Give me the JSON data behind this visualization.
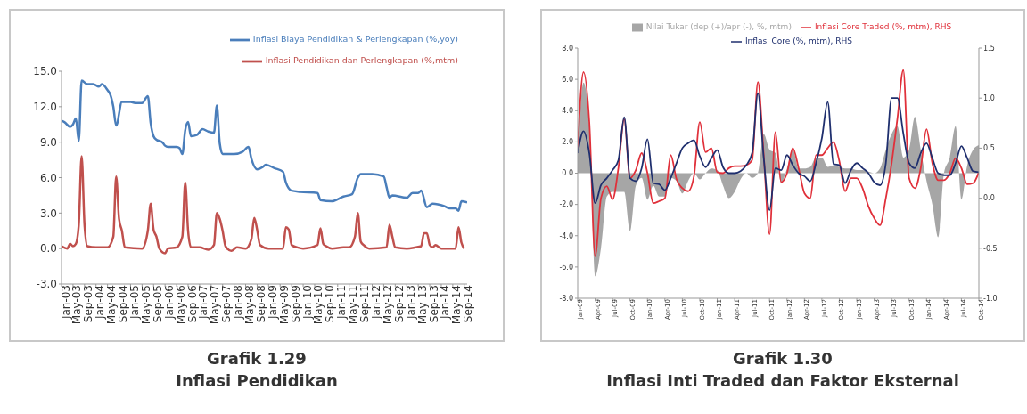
{
  "chart_data": [
    {
      "type": "line",
      "title": "Grafik 1.29",
      "subtitle": "Inflasi Pendidikan",
      "marker": "none",
      "legend": "top right",
      "xlim": [
        "2003-01",
        "2014-10"
      ],
      "ylim": [
        -3,
        15
      ],
      "yticks": [
        {
          "value": -3,
          "label": "-3.0"
        },
        {
          "value": 0,
          "label": "0.0"
        },
        {
          "value": 3,
          "label": "3.0"
        },
        {
          "value": 6,
          "label": "6.0"
        },
        {
          "value": 9,
          "label": "9.0"
        },
        {
          "value": 12,
          "label": "12.0"
        },
        {
          "value": 15,
          "label": "15.0"
        }
      ],
      "xticks": [
        {
          "value": "2003-01",
          "label": "Jan-03"
        },
        {
          "value": "2003-05",
          "label": "May-03"
        },
        {
          "value": "2003-09",
          "label": "Sep-03"
        },
        {
          "value": "2004-01",
          "label": "Jan-04"
        },
        {
          "value": "2004-05",
          "label": "May-04"
        },
        {
          "value": "2004-09",
          "label": "Sep-04"
        },
        {
          "value": "2005-01",
          "label": "Jan-05"
        },
        {
          "value": "2005-05",
          "label": "May-05"
        },
        {
          "value": "2005-09",
          "label": "Sep-05"
        },
        {
          "value": "2006-01",
          "label": "Jan-06"
        },
        {
          "value": "2006-05",
          "label": "May-06"
        },
        {
          "value": "2006-09",
          "label": "Sep-06"
        },
        {
          "value": "2007-01",
          "label": "Jan-07"
        },
        {
          "value": "2007-05",
          "label": "May-07"
        },
        {
          "value": "2007-09",
          "label": "Sep-07"
        },
        {
          "value": "2008-01",
          "label": "Jan-08"
        },
        {
          "value": "2008-05",
          "label": "May-08"
        },
        {
          "value": "2008-09",
          "label": "Sep-08"
        },
        {
          "value": "2009-01",
          "label": "Jan-09"
        },
        {
          "value": "2009-05",
          "label": "May-09"
        },
        {
          "value": "2009-09",
          "label": "Sep-09"
        },
        {
          "value": "2010-01",
          "label": "Jan-10"
        },
        {
          "value": "2010-05",
          "label": "May-10"
        },
        {
          "value": "2010-09",
          "label": "Sep-10"
        },
        {
          "value": "2011-01",
          "label": "Jan-11"
        },
        {
          "value": "2011-05",
          "label": "May-11"
        },
        {
          "value": "2011-09",
          "label": "Sep-11"
        },
        {
          "value": "2012-01",
          "label": "Jan-12"
        },
        {
          "value": "2012-05",
          "label": "May-12"
        },
        {
          "value": "2012-09",
          "label": "Sep-12"
        },
        {
          "value": "2013-01",
          "label": "Jan-13"
        },
        {
          "value": "2013-05",
          "label": "May-13"
        },
        {
          "value": "2013-09",
          "label": "Sep-13"
        },
        {
          "value": "2014-01",
          "label": "Jan-14"
        },
        {
          "value": "2014-05",
          "label": "May-14"
        },
        {
          "value": "2014-09",
          "label": "Sep-14"
        }
      ],
      "series": [
        {
          "name": "Inflasi Biaya Pendidikan & Perlengkapan (%,yoy)",
          "color": "#4a7ebb",
          "x": [
            "2003-01",
            "2003-02",
            "2003-04",
            "2003-05",
            "2003-06",
            "2003-07",
            "2003-08",
            "2003-10",
            "2003-12",
            "2004-02",
            "2004-03",
            "2004-05",
            "2004-06",
            "2004-07",
            "2004-08",
            "2004-10",
            "2005-01",
            "2005-03",
            "2005-05",
            "2005-07",
            "2005-08",
            "2005-09",
            "2005-10",
            "2005-12",
            "2006-01",
            "2006-02",
            "2006-05",
            "2006-06",
            "2006-07",
            "2006-08",
            "2006-09",
            "2006-10",
            "2006-12",
            "2007-02",
            "2007-04",
            "2007-06",
            "2007-07",
            "2007-08",
            "2007-09",
            "2008-01",
            "2008-04",
            "2008-06",
            "2008-07",
            "2008-09",
            "2008-11",
            "2008-12",
            "2009-03",
            "2009-06",
            "2009-07",
            "2009-09",
            "2009-12",
            "2010-06",
            "2010-07",
            "2010-11",
            "2011-03",
            "2011-06",
            "2011-08",
            "2011-09",
            "2012-01",
            "2012-05",
            "2012-06",
            "2012-07",
            "2012-08",
            "2013-01",
            "2013-03",
            "2013-05",
            "2013-06",
            "2013-08",
            "2013-10",
            "2014-02",
            "2014-04",
            "2014-06",
            "2014-07",
            "2014-08",
            "2014-10"
          ],
          "values": [
            10.8,
            10.7,
            10.3,
            10.5,
            11.0,
            9.1,
            14.2,
            13.9,
            13.9,
            13.7,
            13.9,
            13.4,
            13.0,
            12.0,
            10.4,
            12.4,
            12.4,
            12.3,
            12.3,
            12.9,
            10.6,
            9.5,
            9.2,
            9.0,
            8.7,
            8.6,
            8.6,
            8.5,
            8.0,
            10.0,
            10.7,
            9.5,
            9.6,
            10.1,
            9.9,
            9.8,
            12.1,
            8.9,
            8.0,
            8.0,
            8.2,
            8.6,
            7.6,
            6.7,
            6.9,
            7.1,
            6.8,
            6.5,
            5.6,
            4.9,
            4.8,
            4.7,
            4.1,
            4.0,
            4.4,
            4.6,
            6.0,
            6.3,
            6.3,
            6.1,
            5.2,
            4.3,
            4.5,
            4.3,
            4.7,
            4.7,
            4.9,
            3.5,
            3.8,
            3.6,
            3.4,
            3.4,
            3.2,
            4.0,
            3.9
          ]
        },
        {
          "name": "Inflasi Pendidikan dan Perlengkapan (%,mtm)",
          "color": "#c0504d",
          "x": [
            "2003-01",
            "2003-03",
            "2003-04",
            "2003-05",
            "2003-06",
            "2003-07",
            "2003-08",
            "2003-09",
            "2003-10",
            "2004-01",
            "2004-05",
            "2004-07",
            "2004-08",
            "2004-09",
            "2004-10",
            "2004-11",
            "2005-05",
            "2005-07",
            "2005-08",
            "2005-09",
            "2005-10",
            "2005-11",
            "2006-01",
            "2006-02",
            "2006-05",
            "2006-07",
            "2006-08",
            "2006-09",
            "2006-10",
            "2007-01",
            "2007-04",
            "2007-06",
            "2007-07",
            "2007-08",
            "2007-09",
            "2007-10",
            "2007-12",
            "2008-02",
            "2008-05",
            "2008-07",
            "2008-08",
            "2008-09",
            "2008-10",
            "2009-01",
            "2009-06",
            "2009-07",
            "2009-08",
            "2009-09",
            "2009-11",
            "2010-01",
            "2010-06",
            "2010-07",
            "2010-08",
            "2010-09",
            "2010-11",
            "2011-03",
            "2011-05",
            "2011-07",
            "2011-08",
            "2011-09",
            "2011-10",
            "2011-12",
            "2012-06",
            "2012-07",
            "2012-08",
            "2012-09",
            "2013-01",
            "2013-04",
            "2013-06",
            "2013-07",
            "2013-08",
            "2013-09",
            "2013-10",
            "2013-11",
            "2014-01",
            "2014-06",
            "2014-07",
            "2014-08",
            "2014-09"
          ],
          "values": [
            0.2,
            0.0,
            0.4,
            0.2,
            0.4,
            2.0,
            7.8,
            2.0,
            0.2,
            0.1,
            0.1,
            1.0,
            6.1,
            2.5,
            1.5,
            0.1,
            0.0,
            1.5,
            3.8,
            1.6,
            1.0,
            0.0,
            -0.4,
            0.0,
            0.1,
            1.0,
            5.6,
            1.5,
            0.1,
            0.1,
            -0.1,
            0.3,
            3.0,
            2.5,
            1.5,
            0.2,
            -0.2,
            0.1,
            0.0,
            0.8,
            2.6,
            1.6,
            0.3,
            0.0,
            0.0,
            1.8,
            1.6,
            0.3,
            0.1,
            0.0,
            0.3,
            1.7,
            0.4,
            0.2,
            0.0,
            0.1,
            0.1,
            1.0,
            3.0,
            0.6,
            0.3,
            0.0,
            0.1,
            2.0,
            1.0,
            0.1,
            0.0,
            0.1,
            0.2,
            1.3,
            1.3,
            0.3,
            0.1,
            0.3,
            0.0,
            0.0,
            1.8,
            0.5,
            0.0
          ]
        }
      ]
    },
    {
      "type": "line",
      "title": "Grafik 1.30",
      "subtitle": "Inflasi Inti Traded dan Faktor Eksternal",
      "marker": "none",
      "legend": "top",
      "xlim": [
        "2009-01",
        "2014-10"
      ],
      "ylim": [
        -8,
        8
      ],
      "y2lim": [
        -1,
        1.5
      ],
      "yticks": [
        {
          "value": -8,
          "label": "-8.0"
        },
        {
          "value": -6,
          "label": "-6.0"
        },
        {
          "value": -4,
          "label": "-4.0"
        },
        {
          "value": -2,
          "label": "-2.0"
        },
        {
          "value": 0,
          "label": "0.0"
        },
        {
          "value": 2,
          "label": "2.0"
        },
        {
          "value": 4,
          "label": "4.0"
        },
        {
          "value": 6,
          "label": "6.0"
        },
        {
          "value": 8,
          "label": "8.0"
        }
      ],
      "y2ticks": [
        {
          "value": -1,
          "label": "-1.0"
        },
        {
          "value": -0.5,
          "label": "-0.5"
        },
        {
          "value": 0,
          "label": "0.0"
        },
        {
          "value": 0.5,
          "label": "0.5"
        },
        {
          "value": 1,
          "label": "1.0"
        },
        {
          "value": 1.5,
          "label": "1.5"
        }
      ],
      "xticks": [
        {
          "value": "2009-01",
          "label": "Jan-09"
        },
        {
          "value": "2009-04",
          "label": "Apr-09"
        },
        {
          "value": "2009-07",
          "label": "Jul-09"
        },
        {
          "value": "2009-10",
          "label": "Oct-09"
        },
        {
          "value": "2010-01",
          "label": "Jan-10"
        },
        {
          "value": "2010-04",
          "label": "Apr-10"
        },
        {
          "value": "2010-07",
          "label": "Jul-10"
        },
        {
          "value": "2010-10",
          "label": "Oct-10"
        },
        {
          "value": "2011-01",
          "label": "Jan-11"
        },
        {
          "value": "2011-04",
          "label": "Apr-11"
        },
        {
          "value": "2011-07",
          "label": "Jul-11"
        },
        {
          "value": "2011-10",
          "label": "Oct-11"
        },
        {
          "value": "2012-01",
          "label": "Jan-12"
        },
        {
          "value": "2012-04",
          "label": "Apr-12"
        },
        {
          "value": "2012-07",
          "label": "Jul-12"
        },
        {
          "value": "2012-10",
          "label": "Oct-12"
        },
        {
          "value": "2013-01",
          "label": "Jan-13"
        },
        {
          "value": "2013-04",
          "label": "Apr-13"
        },
        {
          "value": "2013-07",
          "label": "Jul-13"
        },
        {
          "value": "2013-10",
          "label": "Oct-13"
        },
        {
          "value": "2014-01",
          "label": "Jan-14"
        },
        {
          "value": "2014-04",
          "label": "Apr-14"
        },
        {
          "value": "2014-07",
          "label": "Jul-14"
        },
        {
          "value": "2014-10",
          "label": "Oct-14"
        }
      ],
      "x": [
        "2009-01",
        "2009-02",
        "2009-03",
        "2009-04",
        "2009-05",
        "2009-06",
        "2009-07",
        "2009-08",
        "2009-09",
        "2009-10",
        "2009-11",
        "2009-12",
        "2010-01",
        "2010-02",
        "2010-03",
        "2010-04",
        "2010-05",
        "2010-06",
        "2010-07",
        "2010-08",
        "2010-09",
        "2010-10",
        "2010-11",
        "2010-12",
        "2011-01",
        "2011-02",
        "2011-03",
        "2011-04",
        "2011-05",
        "2011-06",
        "2011-07",
        "2011-08",
        "2011-09",
        "2011-10",
        "2011-11",
        "2011-12",
        "2012-01",
        "2012-02",
        "2012-03",
        "2012-04",
        "2012-05",
        "2012-06",
        "2012-07",
        "2012-08",
        "2012-09",
        "2012-10",
        "2012-11",
        "2012-12",
        "2013-01",
        "2013-02",
        "2013-03",
        "2013-04",
        "2013-05",
        "2013-06",
        "2013-07",
        "2013-08",
        "2013-09",
        "2013-10",
        "2013-11",
        "2013-12",
        "2014-01",
        "2014-02",
        "2014-03",
        "2014-04",
        "2014-05",
        "2014-06",
        "2014-07",
        "2014-08",
        "2014-09",
        "2014-10"
      ],
      "series": [
        {
          "name": "Nilai Tukar (dep (+)/apr (-), %, mtm)",
          "type": "area",
          "color": "#a6a6a6",
          "values": [
            1.0,
            5.8,
            3.0,
            -6.6,
            -4.8,
            -1.5,
            -1.2,
            -1.2,
            -1.2,
            -3.7,
            -0.8,
            -0.3,
            -1.7,
            -0.8,
            -1.5,
            -1.5,
            -0.3,
            -0.5,
            -1.3,
            -0.5,
            0.0,
            -0.4,
            0.0,
            0.3,
            0.2,
            -0.8,
            -1.6,
            -1.2,
            -0.4,
            0.0,
            -0.3,
            0.0,
            2.5,
            1.5,
            1.3,
            -0.6,
            0.3,
            1.5,
            0.3,
            0.3,
            0.4,
            1.0,
            1.0,
            0.4,
            0.5,
            0.4,
            0.3,
            0.3,
            0.2,
            0.2,
            0.1,
            0.0,
            0.3,
            1.5,
            2.5,
            3.0,
            1.0,
            1.5,
            3.6,
            1.5,
            -0.5,
            -2.0,
            -4.1,
            0.0,
            1.0,
            3.0,
            -1.7,
            0.5,
            1.5,
            1.8
          ]
        },
        {
          "name": "Inflasi Core Traded (%, mtm), RHS",
          "axis": "y2",
          "color": "#e0303a",
          "values": [
            0.5,
            1.26,
            0.76,
            -0.58,
            0.0,
            0.12,
            -0.01,
            0.3,
            0.79,
            0.2,
            0.28,
            0.45,
            0.25,
            -0.05,
            -0.03,
            0.0,
            0.43,
            0.19,
            0.1,
            0.07,
            0.22,
            0.76,
            0.46,
            0.5,
            0.26,
            0.25,
            0.3,
            0.32,
            0.32,
            0.33,
            0.38,
            1.16,
            0.43,
            -0.36,
            0.66,
            0.16,
            0.25,
            0.5,
            0.3,
            0.05,
            0.0,
            0.43,
            0.43,
            0.5,
            0.56,
            0.37,
            0.07,
            0.2,
            0.2,
            0.1,
            -0.08,
            -0.2,
            -0.27,
            0.0,
            0.35,
            0.8,
            1.28,
            0.2,
            0.1,
            0.3,
            0.69,
            0.35,
            0.18,
            0.18,
            0.25,
            0.4,
            0.3,
            0.14,
            0.15,
            0.26
          ]
        },
        {
          "name": "Inflasi Core (%, mtm), RHS",
          "axis": "y2",
          "color": "#1f2f6e",
          "values": [
            0.45,
            0.67,
            0.45,
            -0.05,
            0.13,
            0.2,
            0.28,
            0.38,
            0.81,
            0.2,
            0.17,
            0.3,
            0.59,
            0.15,
            0.14,
            0.08,
            0.2,
            0.35,
            0.5,
            0.55,
            0.58,
            0.42,
            0.31,
            0.4,
            0.48,
            0.31,
            0.25,
            0.25,
            0.27,
            0.33,
            0.45,
            1.05,
            0.4,
            -0.12,
            0.3,
            0.28,
            0.43,
            0.33,
            0.25,
            0.22,
            0.17,
            0.35,
            0.6,
            0.96,
            0.34,
            0.33,
            0.15,
            0.28,
            0.35,
            0.3,
            0.25,
            0.16,
            0.13,
            0.35,
            1.0,
            1.0,
            0.65,
            0.35,
            0.3,
            0.45,
            0.55,
            0.4,
            0.25,
            0.23,
            0.23,
            0.35,
            0.52,
            0.4,
            0.27,
            0.26
          ]
        }
      ]
    }
  ]
}
